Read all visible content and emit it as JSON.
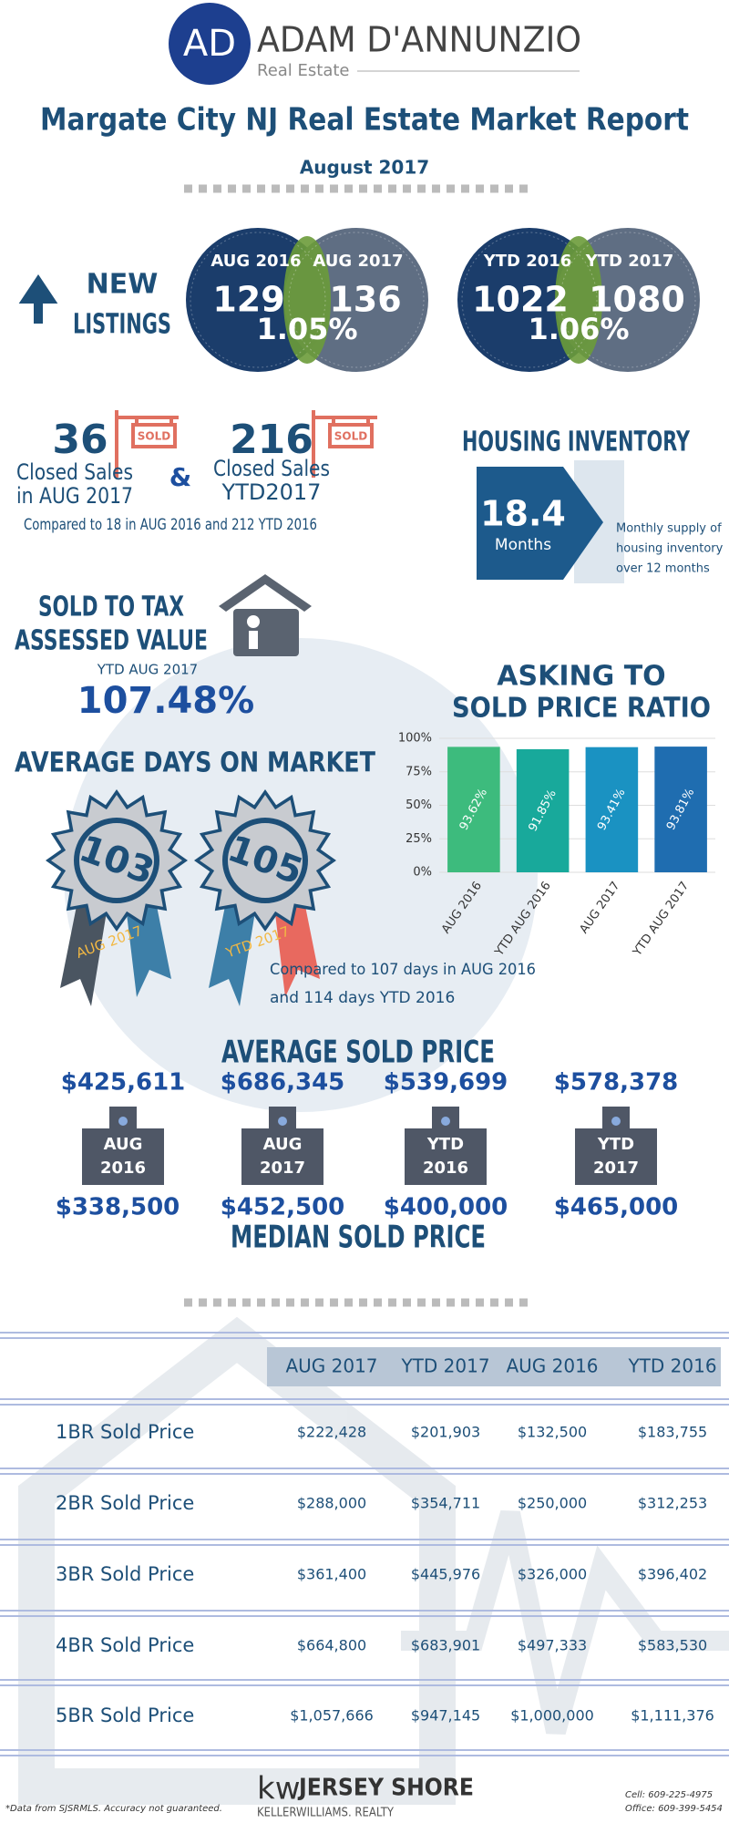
{
  "header": {
    "logo_initials": "AD",
    "name": "ADAM D'ANNUNZIO",
    "tagline": "Real Estate",
    "title": "Margate City NJ Real Estate Market Report",
    "date": "August 2017"
  },
  "new_listings": {
    "label_lines": [
      "NEW",
      "LISTINGS"
    ],
    "monthly": {
      "left_label": "AUG 2016",
      "left_value": "129",
      "right_label": "AUG 2017",
      "right_value": "136",
      "change": "1.05%"
    },
    "ytd": {
      "left_label": "YTD 2016",
      "left_value": "1022",
      "right_label": "YTD 2017",
      "right_value": "1080",
      "change": "1.06%"
    }
  },
  "closed_sales": {
    "left": {
      "value": "36",
      "lines": [
        "Closed Sales",
        "in AUG 2017"
      ],
      "sign": "SOLD"
    },
    "right": {
      "value": "216",
      "lines": [
        "Closed Sales",
        "YTD2017"
      ],
      "sign": "SOLD"
    },
    "joiner": "&",
    "note": "Compared to 18 in AUG 2016 and 212 YTD 2016"
  },
  "housing_inventory": {
    "title": "HOUSING INVENTORY",
    "value": "18.4",
    "unit": "Months",
    "description_lines": [
      "Monthly supply of",
      "housing inventory",
      "over 12 months"
    ]
  },
  "tax_value": {
    "title_lines": [
      "SOLD TO TAX",
      "ASSESSED VALUE"
    ],
    "subtitle": "YTD AUG 2017",
    "value": "107.48%"
  },
  "chart_data": {
    "type": "bar",
    "title_lines": [
      "ASKING TO",
      "SOLD PRICE RATIO"
    ],
    "categories": [
      "AUG 2016",
      "YTD AUG 2016",
      "AUG 2017",
      "YTD AUG 2017"
    ],
    "values": [
      93.62,
      91.85,
      93.41,
      93.81
    ],
    "value_labels": [
      "93.62%",
      "91.85%",
      "93.41%",
      "93.81%"
    ],
    "colors": [
      "#3dbb7d",
      "#18a99b",
      "#1a92c2",
      "#1f6db0"
    ],
    "ylim": [
      0,
      100
    ],
    "yticks": [
      {
        "value": 0,
        "label": "0%"
      },
      {
        "value": 25,
        "label": "25%"
      },
      {
        "value": 50,
        "label": "50%"
      },
      {
        "value": 75,
        "label": "75%"
      },
      {
        "value": 100,
        "label": "100%"
      }
    ],
    "grid": true
  },
  "days_on_market": {
    "title": "AVERAGE DAYS ON MARKET",
    "badges": [
      {
        "value": "103",
        "label": "AUG 2017"
      },
      {
        "value": "105",
        "label": "YTD 2017"
      }
    ],
    "note_lines": [
      "Compared to 107 days in AUG 2016",
      "and 114 days YTD 2016"
    ]
  },
  "prices": {
    "average_title": "AVERAGE SOLD PRICE",
    "median_title": "MEDIAN SOLD PRICE",
    "items": [
      {
        "average": "$425,611",
        "label_lines": [
          "AUG",
          "2016"
        ],
        "median": "$338,500"
      },
      {
        "average": "$686,345",
        "label_lines": [
          "AUG",
          "2017"
        ],
        "median": "$452,500"
      },
      {
        "average": "$539,699",
        "label_lines": [
          "YTD",
          "2016"
        ],
        "median": "$400,000"
      },
      {
        "average": "$578,378",
        "label_lines": [
          "YTD",
          "2017"
        ],
        "median": "$465,000"
      }
    ]
  },
  "table": {
    "headers": [
      "AUG 2017",
      "YTD 2017",
      "AUG 2016",
      "YTD 2016"
    ],
    "rows": [
      [
        "1BR Sold Price",
        "$222,428",
        "$201,903",
        "$132,500",
        "$183,755"
      ],
      [
        "2BR Sold Price",
        "$288,000",
        "$354,711",
        "$250,000",
        "$312,253"
      ],
      [
        "3BR Sold Price",
        "$361,400",
        "$445,976",
        "$326,000",
        "$396,402"
      ],
      [
        "4BR Sold Price",
        "$664,800",
        "$683,901",
        "$497,333",
        "$583,530"
      ],
      [
        "5BR Sold Price",
        "$1,057,666",
        "$947,145",
        "$1,000,000",
        "$1,111,376"
      ]
    ]
  },
  "footer": {
    "note": "*Data from SJSRMLS.  Accuracy not guaranteed.",
    "brand_mark": "kw",
    "brand_name": "JERSEY SHORE",
    "brand_sub": "KELLERWILLIAMS. REALTY",
    "cell": "Cell: 609-225-4975",
    "office": "Office: 609-399-5454"
  }
}
